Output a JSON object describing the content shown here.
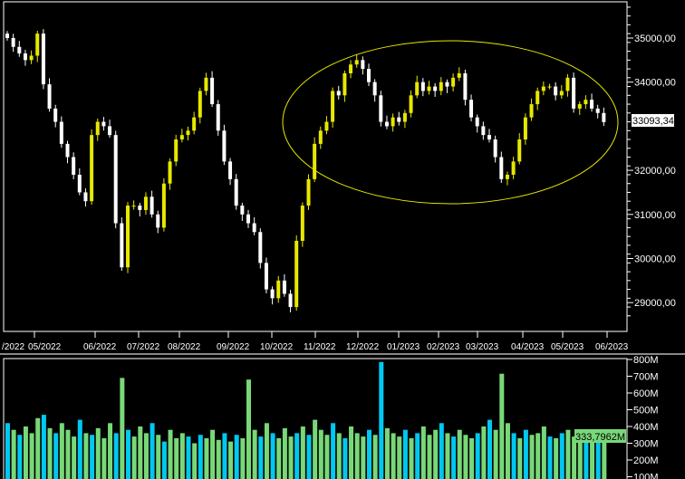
{
  "chart_data": [
    {
      "type": "candlestick",
      "panel": "price",
      "x_tick_labels": [
        "/2022",
        "05/2022",
        "06/2022",
        "07/2022",
        "08/2022",
        "09/2022",
        "10/2022",
        "11/2022",
        "12/2022",
        "01/2023",
        "02/2023",
        "03/2023",
        "04/2023",
        "05/2023",
        "06/2023"
      ],
      "y_tick_labels": [
        "35000,00",
        "34000,00",
        "32000,00",
        "31000,00",
        "30000,00",
        "29000,00"
      ],
      "ylim": [
        28600,
        35800
      ],
      "last_value_label": "33093,34",
      "colors": {
        "up": "#e8e800",
        "down": "#ffffff",
        "annotation": "#e8e800",
        "background": "#000000"
      },
      "closes": [
        35000,
        34800,
        34650,
        34500,
        34600,
        35100,
        33950,
        33400,
        33100,
        32600,
        32300,
        31900,
        31500,
        31300,
        32800,
        33100,
        33000,
        32800,
        30800,
        29800,
        31200,
        31200,
        31100,
        31400,
        31000,
        30700,
        31700,
        32200,
        32700,
        32800,
        32900,
        33200,
        33800,
        34100,
        33500,
        32900,
        32200,
        31800,
        31200,
        31000,
        30800,
        30600,
        29900,
        29300,
        29100,
        29500,
        29200,
        28900,
        30400,
        31200,
        31800,
        32600,
        32900,
        33100,
        33800,
        33700,
        34200,
        34400,
        34500,
        34300,
        34000,
        33700,
        33100,
        33000,
        33200,
        33100,
        33300,
        33700,
        34000,
        33800,
        33900,
        33800,
        34000,
        33900,
        34100,
        34200,
        33600,
        33200,
        33000,
        32800,
        32700,
        32300,
        31800,
        31900,
        32200,
        32700,
        33200,
        33500,
        33800,
        33900,
        33900,
        33700,
        33800,
        34100,
        33400,
        33500,
        33600,
        33400,
        33300,
        33093.34
      ],
      "annotation": "ellipse"
    },
    {
      "type": "bar",
      "panel": "volume",
      "y_tick_labels": [
        "800M",
        "700M",
        "600M",
        "500M",
        "400M",
        "300M",
        "200M",
        "100M"
      ],
      "ylim": [
        100,
        800
      ],
      "last_value_label": "333,7962M",
      "colors": {
        "a": "#00c8f0",
        "b": "#78d878"
      },
      "values": [
        420,
        380,
        350,
        400,
        360,
        450,
        470,
        390,
        360,
        420,
        380,
        340,
        440,
        360,
        350,
        390,
        330,
        420,
        360,
        690,
        380,
        340,
        400,
        360,
        420,
        350,
        310,
        380,
        330,
        360,
        340,
        300,
        350,
        330,
        380,
        320,
        360,
        310,
        350,
        330,
        680,
        380,
        340,
        420,
        360,
        330,
        390,
        340,
        360,
        400,
        350,
        440,
        380,
        350,
        420,
        360,
        330,
        400,
        360,
        340,
        380,
        350,
        785,
        390,
        360,
        340,
        380,
        330,
        360,
        400,
        350,
        380,
        420,
        360,
        340,
        380,
        350,
        330,
        360,
        400,
        440,
        380,
        715,
        420,
        360,
        330,
        380,
        350,
        360,
        400,
        340,
        330,
        360,
        380,
        340,
        320,
        350,
        330,
        360,
        333.8
      ]
    }
  ]
}
